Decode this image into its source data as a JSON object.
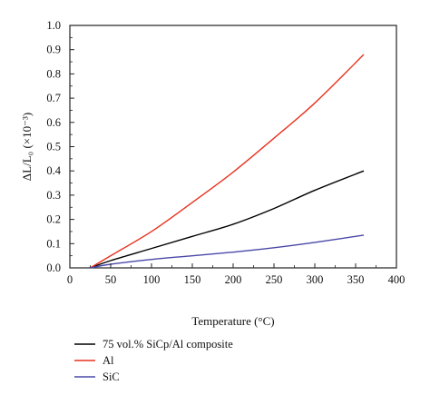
{
  "chart_data": {
    "type": "line",
    "title": "",
    "xlabel": "Temperature (°C)",
    "ylabel": "ΔL/L₀ (×10⁻³)",
    "xlim": [
      0,
      400
    ],
    "ylim": [
      0,
      1.0
    ],
    "x_ticks": [
      "0",
      "50",
      "100",
      "150",
      "200",
      "250",
      "300",
      "350",
      "400"
    ],
    "y_ticks": [
      "0.0",
      "0.1",
      "0.2",
      "0.3",
      "0.4",
      "0.5",
      "0.6",
      "0.7",
      "0.8",
      "0.9",
      "1.0"
    ],
    "grid": false,
    "legend_position": "bottom-left, below plot",
    "series": [
      {
        "name": "75 vol.% SiCp/Al composite",
        "color": "#000000",
        "x": [
          25,
          50,
          100,
          150,
          200,
          250,
          300,
          360
        ],
        "y": [
          0.0,
          0.03,
          0.08,
          0.13,
          0.18,
          0.245,
          0.32,
          0.4
        ]
      },
      {
        "name": "Al",
        "color": "#e8321e",
        "x": [
          25,
          50,
          100,
          150,
          200,
          250,
          300,
          360
        ],
        "y": [
          0.0,
          0.05,
          0.15,
          0.27,
          0.395,
          0.535,
          0.68,
          0.88
        ]
      },
      {
        "name": "SiC",
        "color": "#4a48a8",
        "x": [
          25,
          50,
          100,
          150,
          200,
          250,
          300,
          360
        ],
        "y": [
          0.0,
          0.015,
          0.035,
          0.05,
          0.065,
          0.083,
          0.105,
          0.135
        ]
      }
    ]
  }
}
